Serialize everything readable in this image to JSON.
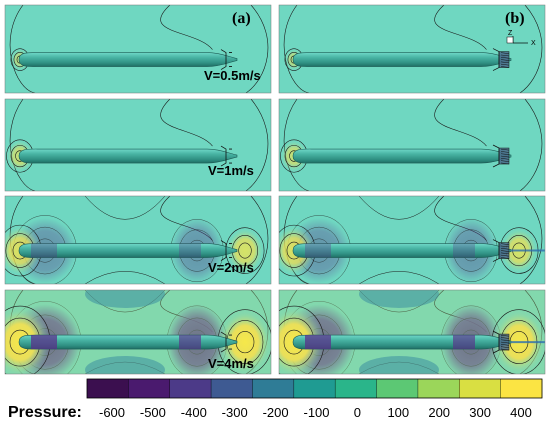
{
  "panels": {
    "a_label": "(a)",
    "b_label": "(b)"
  },
  "rows": [
    {
      "velocity_label": "V=0.5m/s",
      "stagnation_level": 0.05
    },
    {
      "velocity_label": "V=1m/s",
      "stagnation_level": 0.25
    },
    {
      "velocity_label": "V=2m/s",
      "stagnation_level": 0.6
    },
    {
      "velocity_label": "V=4m/s",
      "stagnation_level": 1.0
    }
  ],
  "axes_triad": {
    "z_label": "Z",
    "x_label": "X"
  },
  "colorbar": {
    "title": "Pressure:",
    "ticks": [
      "-600",
      "-500",
      "-400",
      "-300",
      "-200",
      "-100",
      "0",
      "100",
      "200",
      "300",
      "400"
    ],
    "colors": [
      "#3b0f4f",
      "#4a1a6e",
      "#4c3a88",
      "#3e5a92",
      "#2f7c96",
      "#1f9b92",
      "#2ab58a",
      "#5cc874",
      "#9bd65a",
      "#d9df42",
      "#fbe443"
    ]
  },
  "colors": {
    "background": "#6fd7c1",
    "body": "#3aa79a",
    "contour": "#1a1a1a",
    "low_pressure": "#5b2d8a",
    "high_pressure": "#f3e247"
  }
}
